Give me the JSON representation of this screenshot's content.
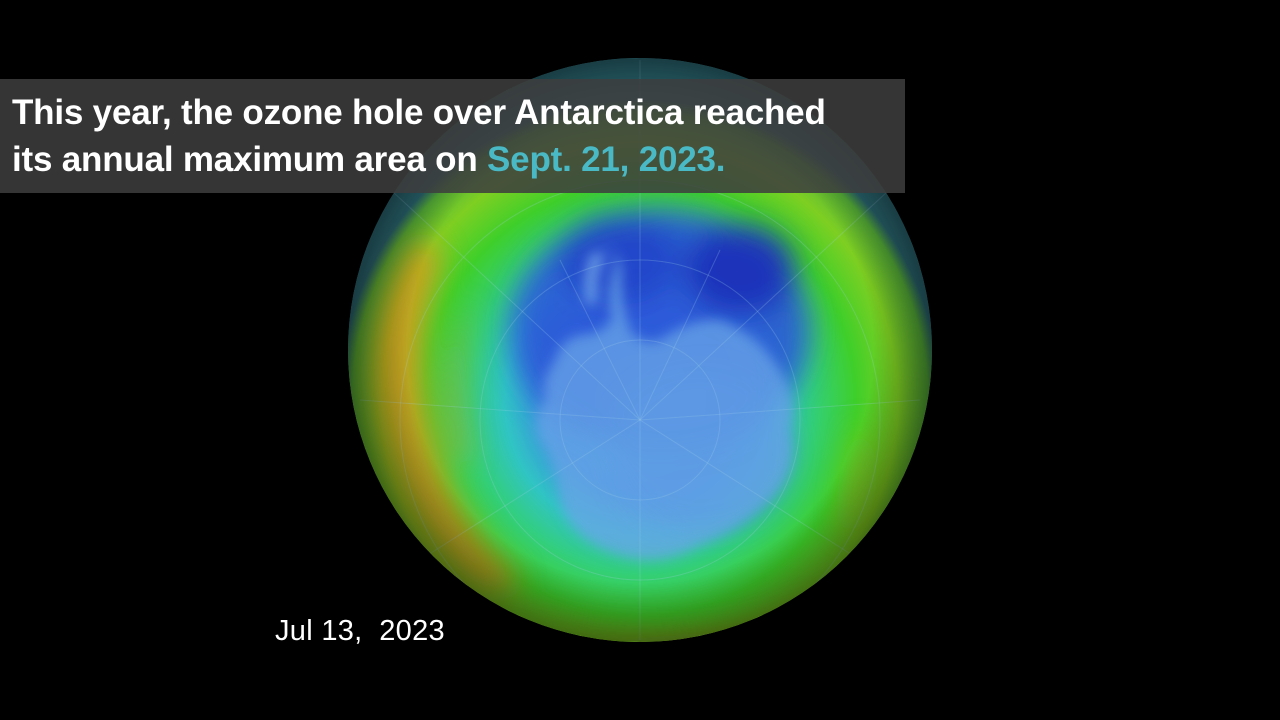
{
  "caption": {
    "line1": "This year, the ozone hole over Antarctica reached",
    "line2_prefix": "its annual maximum area on ",
    "line2_highlight": "Sept. 21, 2023."
  },
  "date_stamp": "Jul 13,  2023",
  "colors": {
    "background": "#000000",
    "banner": "#3e3e3e",
    "highlight": "#4ab9c6",
    "text": "#ffffff",
    "ozone_low": "#1f3fd0",
    "ozone_mid": "#35b6c0",
    "ozone_high": "#3fcf2a",
    "ozone_peak": "#d88a18"
  },
  "globe": {
    "subject": "ozone-concentration-map-antarctica",
    "continent": "antarctica"
  }
}
